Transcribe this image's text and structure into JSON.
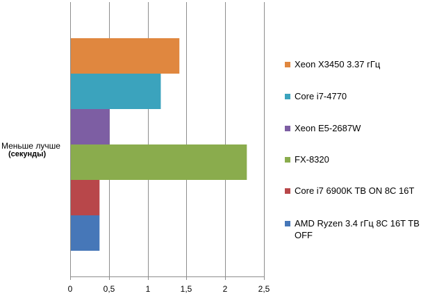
{
  "chart_data": {
    "type": "bar",
    "orientation": "horizontal",
    "title": "",
    "ylabel_line1": "Меньше лучше",
    "ylabel_line2": "(секунды)",
    "xlabel": "",
    "xlim": [
      0,
      2.5
    ],
    "xticks": [
      "0",
      "0,5",
      "1",
      "1,5",
      "2",
      "2,5"
    ],
    "grid": true,
    "legend_position": "right",
    "series": [
      {
        "name": "Xeon X3450  3.37 гГц",
        "value": 1.4,
        "color": "#e0873f"
      },
      {
        "name": "Core i7-4770",
        "value": 1.16,
        "color": "#3ba3bd"
      },
      {
        "name": "Xeon E5-2687W",
        "value": 0.5,
        "color": "#7d5ea3"
      },
      {
        "name": "FX-8320",
        "value": 2.27,
        "color": "#8aac4d"
      },
      {
        "name": "Core i7 6900K TB ON 8C 16T",
        "value": 0.37,
        "color": "#b8474a"
      },
      {
        "name": "AMD Ryzen 3.4 гГц 8C 16T TB OFF",
        "value": 0.37,
        "color": "#4677b8"
      }
    ]
  }
}
